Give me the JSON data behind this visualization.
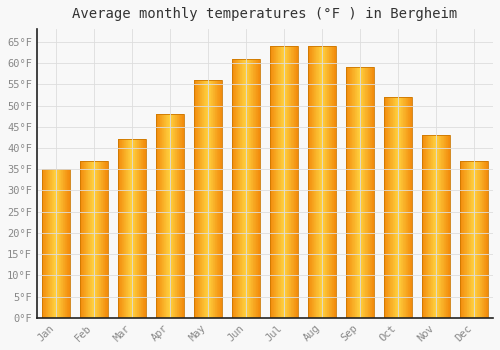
{
  "title": "Average monthly temperatures (°F ) in Bergheim",
  "months": [
    "Jan",
    "Feb",
    "Mar",
    "Apr",
    "May",
    "Jun",
    "Jul",
    "Aug",
    "Sep",
    "Oct",
    "Nov",
    "Dec"
  ],
  "values": [
    35,
    37,
    42,
    48,
    56,
    61,
    64,
    64,
    59,
    52,
    43,
    37
  ],
  "bar_color_main": "#FFA500",
  "bar_color_light": "#FFD060",
  "bar_edge_color": "#CC7700",
  "background_color": "#F8F8F8",
  "plot_bg_color": "#F8F8F8",
  "grid_color": "#DDDDDD",
  "tick_label_color": "#888888",
  "title_color": "#333333",
  "axis_color": "#222222",
  "ylim": [
    0,
    68
  ],
  "yticks": [
    0,
    5,
    10,
    15,
    20,
    25,
    30,
    35,
    40,
    45,
    50,
    55,
    60,
    65
  ],
  "title_fontsize": 10,
  "tick_fontsize": 7.5,
  "font_family": "monospace",
  "bar_width": 0.72
}
